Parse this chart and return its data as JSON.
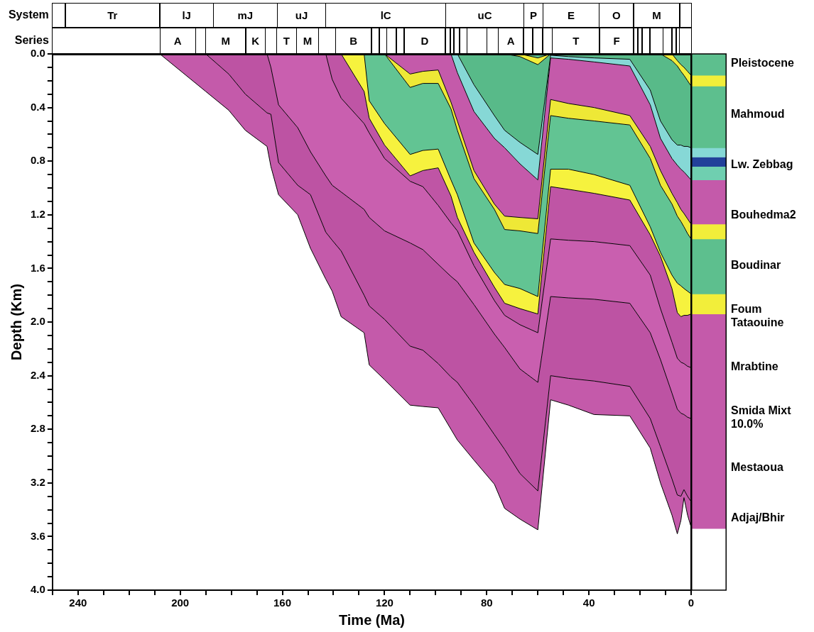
{
  "chart_data": [
    {
      "type": "other",
      "annotations": [
        "System",
        "Tr",
        "lJ",
        "mJ",
        "uJ",
        "lC",
        "uC",
        "P",
        "E",
        "O",
        "M",
        "Series",
        "A",
        "M",
        "K",
        "T",
        "M",
        "B",
        "D",
        "A",
        "T",
        "F"
      ]
    },
    {
      "type": "area",
      "stacked": true,
      "xlabel": "Time (Ma)",
      "ylabel": "Depth (Km)",
      "xlim": [
        250,
        0
      ],
      "ylim": [
        4.0,
        0
      ],
      "xticks": [
        {
          "value": 250,
          "label": null
        },
        240,
        {
          "value": 230,
          "label": null
        },
        {
          "value": 220,
          "label": null
        },
        {
          "value": 210,
          "label": null
        },
        200,
        {
          "value": 190,
          "label": null
        },
        {
          "value": 180,
          "label": null
        },
        {
          "value": 170,
          "label": null
        },
        160,
        {
          "value": 150,
          "label": null
        },
        {
          "value": 140,
          "label": null
        },
        {
          "value": 130,
          "label": null
        },
        120,
        {
          "value": 110,
          "label": null
        },
        {
          "value": 100,
          "label": null
        },
        {
          "value": 90,
          "label": null
        },
        80,
        {
          "value": 70,
          "label": null
        },
        {
          "value": 60,
          "label": null
        },
        {
          "value": 50,
          "label": null
        },
        40,
        {
          "value": 30,
          "label": null
        },
        {
          "value": 20,
          "label": null
        },
        {
          "value": 10,
          "label": null
        },
        0
      ],
      "yticks": [
        {
          "value": 0,
          "label": "0.0"
        },
        {
          "value": 0.1,
          "label": null
        },
        {
          "value": 0.2,
          "label": null
        },
        {
          "value": 0.3,
          "label": null
        },
        0.4,
        {
          "value": 0.5,
          "label": null
        },
        {
          "value": 0.6,
          "label": null
        },
        {
          "value": 0.7,
          "label": null
        },
        0.8,
        {
          "value": 0.9,
          "label": null
        },
        {
          "value": 1.0,
          "label": null
        },
        {
          "value": 1.1,
          "label": null
        },
        1.2,
        {
          "value": 1.3,
          "label": null
        },
        {
          "value": 1.4,
          "label": null
        },
        {
          "value": 1.5,
          "label": null
        },
        1.6,
        {
          "value": 1.7,
          "label": null
        },
        {
          "value": 1.8,
          "label": null
        },
        {
          "value": 1.9,
          "label": null
        },
        {
          "value": 2.0,
          "label": "2.0"
        },
        {
          "value": 2.1,
          "label": null
        },
        {
          "value": 2.2,
          "label": null
        },
        {
          "value": 2.3,
          "label": null
        },
        2.4,
        {
          "value": 2.5,
          "label": null
        },
        {
          "value": 2.6,
          "label": null
        },
        {
          "value": 2.7,
          "label": null
        },
        2.8,
        {
          "value": 2.9,
          "label": null
        },
        {
          "value": 3.0,
          "label": null
        },
        {
          "value": 3.1,
          "label": null
        },
        3.2,
        {
          "value": 3.3,
          "label": null
        },
        {
          "value": 3.4,
          "label": null
        },
        {
          "value": 3.5,
          "label": null
        },
        3.6,
        {
          "value": 3.7,
          "label": null
        },
        {
          "value": 3.8,
          "label": null
        },
        {
          "value": 3.9,
          "label": null
        },
        {
          "value": 4.0,
          "label": "4.0"
        }
      ],
      "x": [
        208,
        190,
        181,
        174.5,
        166,
        164.5,
        161.5,
        154,
        149,
        143,
        140.5,
        137,
        128,
        126,
        120,
        110,
        105,
        99,
        94,
        91.5,
        85,
        77,
        73,
        67,
        60,
        55,
        48,
        38,
        24,
        16,
        12,
        7.5,
        5.4,
        4,
        2.8,
        1.4,
        0
      ],
      "series": [
        {
          "color": "#5dbf8e",
          "values": [
            0,
            0,
            0,
            0,
            0,
            0,
            0,
            0,
            0,
            0,
            0,
            0,
            0,
            0,
            0,
            0,
            0,
            0,
            0,
            0,
            0,
            0,
            0,
            0,
            0.03,
            0,
            0,
            0,
            0,
            0,
            0,
            0,
            0.05,
            0.08,
            0.1,
            0.13,
            0.16
          ]
        },
        {
          "color": "#f2ee3a",
          "values": [
            0,
            0,
            0,
            0,
            0,
            0,
            0,
            0,
            0,
            0,
            0,
            0,
            0,
            0,
            0,
            0,
            0,
            0,
            0,
            0,
            0,
            0,
            0,
            0.02,
            0.05,
            0,
            0,
            0,
            0,
            0,
            0,
            0.05,
            0.04,
            0.05,
            0.06,
            0.07,
            0.08
          ]
        },
        {
          "color": "#58ba89",
          "values": [
            0,
            0,
            0,
            0,
            0,
            0,
            0,
            0,
            0,
            0,
            0,
            0,
            0,
            0,
            0,
            0,
            0,
            0,
            0,
            0,
            0.23,
            0.46,
            0.57,
            0.64,
            0.67,
            0.01,
            0.02,
            0.03,
            0.04,
            0.27,
            0.5,
            0.59,
            0.59,
            0.55,
            0.53,
            0.49,
            0.46
          ]
        },
        {
          "color": "#86d8d6",
          "values": [
            0,
            0,
            0,
            0,
            0,
            0,
            0,
            0,
            0,
            0,
            0,
            0,
            0,
            0,
            0,
            0,
            0,
            0,
            0,
            0.14,
            0.2,
            0.17,
            0.13,
            0.16,
            0.19,
            0.02,
            0.02,
            0.03,
            0.05,
            0.11,
            0.13,
            0.14,
            0.15,
            0.18,
            0.19,
            0.22,
            0.24
          ]
        },
        {
          "color": "#c45aaa",
          "values": [
            0,
            0,
            0,
            0,
            0,
            0,
            0,
            0,
            0,
            0,
            0,
            0,
            0,
            0,
            0,
            0.15,
            0.13,
            0.12,
            0.36,
            0.36,
            0.44,
            0.49,
            0.51,
            0.4,
            0.29,
            0.31,
            0.33,
            0.34,
            0.37,
            0.31,
            0.24,
            0.26,
            0.28,
            0.3,
            0.31,
            0.32,
            0.33
          ]
        },
        {
          "color": "#eee836",
          "values": [
            0,
            0,
            0,
            0,
            0,
            0,
            0,
            0,
            0,
            0,
            0,
            0,
            0,
            0,
            0,
            0.1,
            0.09,
            0.1,
            0.05,
            0.07,
            0.06,
            0.04,
            0.1,
            0.1,
            0.11,
            0.12,
            0.11,
            0.1,
            0.07,
            0.09,
            0.11,
            0.08,
            0.1,
            0.09,
            0.1,
            0.11,
            0.11
          ]
        },
        {
          "color": "#62c493",
          "values": [
            0,
            0,
            0,
            0,
            0,
            0,
            0,
            0,
            0,
            0,
            0,
            0,
            0,
            0.35,
            0.52,
            0.5,
            0.5,
            0.49,
            0.53,
            0.48,
            0.48,
            0.47,
            0.41,
            0.43,
            0.47,
            0.4,
            0.38,
            0.4,
            0.45,
            0.51,
            0.5,
            0.53,
            0.5,
            0.48,
            0.46,
            0.43,
            0.41
          ]
        },
        {
          "color": "#f6f23e",
          "values": [
            0,
            0,
            0,
            0,
            0,
            0,
            0,
            0,
            0,
            0,
            0,
            0,
            0.28,
            0.13,
            0.16,
            0.16,
            0.15,
            0.14,
            0.12,
            0.17,
            0.07,
            0.11,
            0.14,
            0.15,
            0.13,
            0.13,
            0.15,
            0.14,
            0.11,
            0.06,
            0.03,
            0.1,
            0.22,
            0.23,
            0.2,
            0.18,
            0.15
          ]
        },
        {
          "color": "#bf55a5",
          "values": [
            0,
            0,
            0,
            0,
            0,
            0,
            0,
            0,
            0,
            0,
            0.19,
            0.33,
            0.24,
            0.11,
            0.1,
            0.04,
            0.12,
            0.28,
            0.2,
            0.1,
            0.1,
            0.1,
            0.09,
            0.12,
            0.14,
            0.39,
            0.38,
            0.36,
            0.34,
            0.3,
            0.39,
            0.4,
            0.34,
            0.34,
            0.36,
            0.38,
            0.4
          ]
        },
        {
          "color": "#c95faf",
          "values": [
            0,
            0,
            0,
            0,
            0,
            0.1,
            0.38,
            0.55,
            0.73,
            0.91,
            0.79,
            0.7,
            0.64,
            0.63,
            0.54,
            0.46,
            0.47,
            0.44,
            0.4,
            0.38,
            0.29,
            0.25,
            0.24,
            0.33,
            0.37,
            0.43,
            0.43,
            0.43,
            0.43,
            0.43,
            0.38,
            0.38,
            0.38,
            0.38,
            0.38,
            0.38,
            0.38
          ]
        },
        {
          "color": "#bd53a3",
          "values": [
            0,
            0,
            0.15,
            0.3,
            0.44,
            0.35,
            0.43,
            0.43,
            0.32,
            0.42,
            0.41,
            0.44,
            0.64,
            0.66,
            0.66,
            0.77,
            0.75,
            0.74,
            0.75,
            0.75,
            0.75,
            0.75,
            0.76,
            0.78,
            0.81,
            0.59,
            0.6,
            0.61,
            0.62,
            0.64,
            0.65,
            0.64,
            0.64,
            0.62,
            0.56,
            0.59,
            0.62
          ]
        },
        {
          "color": "#c45aaa",
          "values": [
            0,
            0.28,
            0.27,
            0.27,
            0.25,
            0.39,
            0.24,
            0.22,
            0.4,
            0.35,
            0.38,
            0.49,
            0.28,
            0.44,
            0.45,
            0.44,
            0.42,
            0.33,
            0.39,
            0.43,
            0.41,
            0.37,
            0.44,
            0.34,
            0.29,
            0.18,
            0.2,
            0.25,
            0.22,
            0.22,
            0.27,
            0.27,
            0.29,
            0.18,
            0.06,
            0.14,
            0.19
          ]
        }
      ]
    },
    {
      "type": "bar",
      "stacked": true,
      "categories": [
        null
      ],
      "ylim": [
        4.0,
        0
      ],
      "tick_labels": false,
      "series": [
        {
          "color": "#5dbf8e",
          "values": [
            0.16
          ]
        },
        {
          "color": "#f2ee3a",
          "values": [
            0.08
          ]
        },
        {
          "color": "#5dbf8e",
          "values": [
            0.46
          ]
        },
        {
          "color": "#86d8d6",
          "values": [
            0.07
          ]
        },
        {
          "color": "#22409a",
          "values": [
            0.07
          ]
        },
        {
          "color": "#6fcfb0",
          "values": [
            0.1
          ]
        },
        {
          "color": "#c45aaa",
          "values": [
            0.33
          ]
        },
        {
          "color": "#f2ee3a",
          "values": [
            0.11
          ]
        },
        {
          "color": "#5dbf8e",
          "values": [
            0.41
          ]
        },
        {
          "color": "#f2ee3a",
          "values": [
            0.15
          ]
        },
        {
          "color": "#c45aaa",
          "values": [
            1.6
          ]
        }
      ],
      "annotations": [
        "Pleistocene",
        "Mahmoud",
        "Lw. Zebbag",
        "Bouhedma2",
        "Boudinar",
        "Foum Tataouine",
        "Mrabtine",
        "Smida Mixt 10.0%",
        "Mestaoua",
        "Adjaj/Bhir"
      ]
    }
  ]
}
